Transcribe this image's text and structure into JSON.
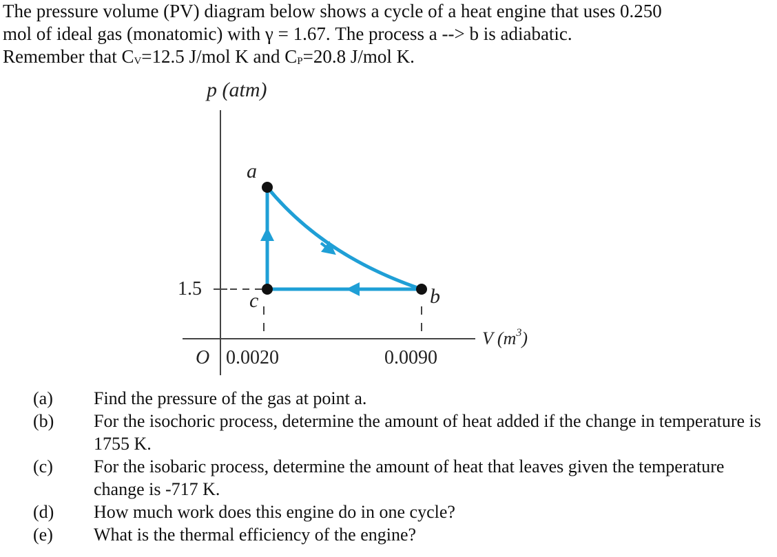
{
  "intro": {
    "line1": "The pressure volume (PV) diagram below shows a cycle of a heat engine that uses 0.250",
    "line2": "mol of ideal gas (monatomic)  with γ = 1.67. The process a --> b is adiabatic.",
    "line3": [
      "Remember that C",
      "V",
      "=12.5 J/mol K and C",
      "P",
      "=20.8 J/mol K."
    ]
  },
  "diagram": {
    "y_axis_label": "p (atm)",
    "x_axis_label": [
      "V (m",
      "3",
      ")"
    ],
    "origin": "O",
    "y_tick": "1.5",
    "x_ticks": [
      "0.0020",
      "0.0090"
    ],
    "points": [
      "a",
      "b",
      "c"
    ]
  },
  "questions": [
    {
      "label": "(a)",
      "text": "Find the pressure of the gas at point a."
    },
    {
      "label": "(b)",
      "text": "For the isochoric process, determine the amount of heat added if the change in temperature is 1755 K."
    },
    {
      "label": "(c)",
      "text": "For the isobaric process, determine the amount of heat that leaves given the temperature change is -717 K."
    },
    {
      "label": "(d)",
      "text": "How much work does this engine do in one cycle?"
    },
    {
      "label": "(e)",
      "text": "What is the thermal efficiency of the engine?"
    }
  ]
}
